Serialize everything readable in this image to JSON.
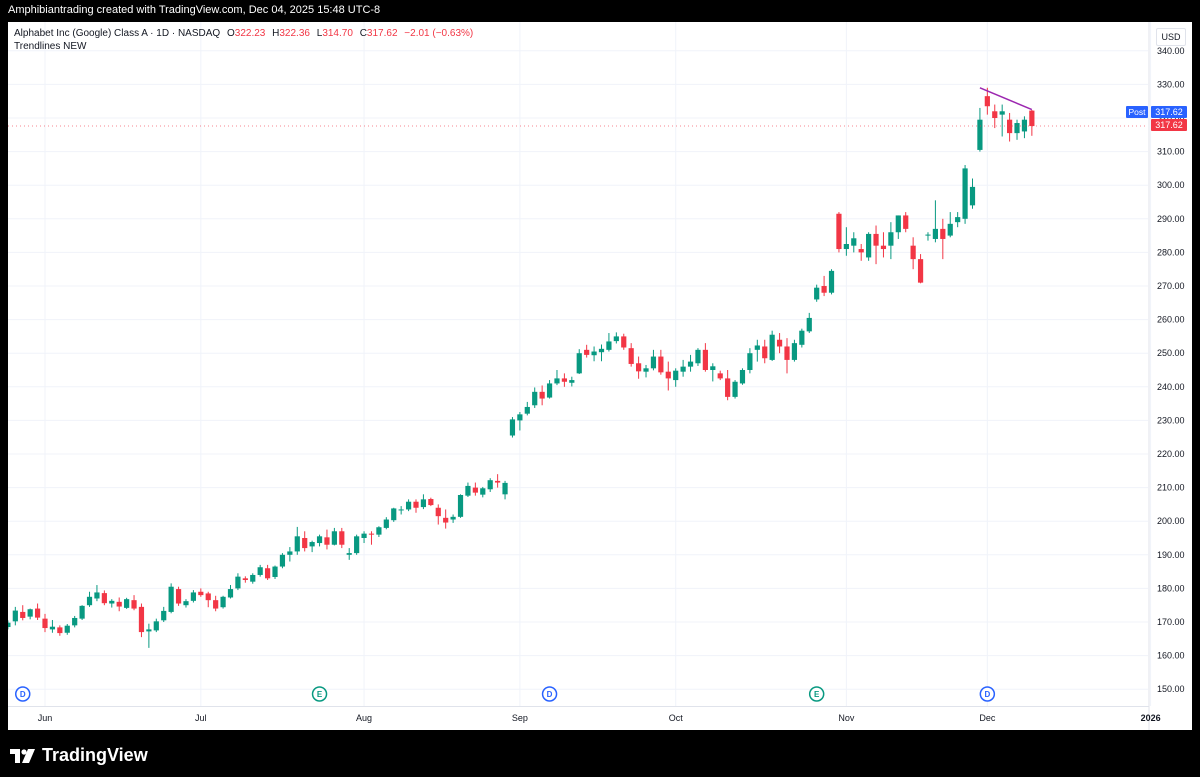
{
  "header": {
    "caption": "Amphibiantrading created with TradingView.com, Dec 04, 2025 15:48 UTC-8"
  },
  "legend": {
    "symbol": "Alphabet Inc (Google) Class A · 1D · NASDAQ",
    "o_label": "O",
    "o": "322.23",
    "h_label": "H",
    "h": "322.36",
    "l_label": "L",
    "l": "314.70",
    "c_label": "C",
    "c": "317.62",
    "change": "−2.01 (−0.63%)",
    "indicator": "Trendlines NEW"
  },
  "currency": "USD",
  "price_tags": {
    "post_label": "Post",
    "post_value": "317.62",
    "last_value": "317.62"
  },
  "footer": {
    "brand": "TradingView"
  },
  "colors": {
    "up": "#089981",
    "down": "#f23645",
    "trendline": "#9c27b0",
    "event_dividend": "#2962ff",
    "event_earnings": "#089981"
  },
  "chart_data": {
    "type": "candlestick",
    "title": "Alphabet Inc (Google) Class A · 1D · NASDAQ",
    "ylabel": "USD",
    "ylim": [
      145,
      345
    ],
    "y_ticks": [
      150,
      160,
      170,
      180,
      190,
      200,
      210,
      220,
      230,
      240,
      250,
      260,
      270,
      280,
      290,
      300,
      310,
      320,
      330,
      340
    ],
    "x_ticks": [
      {
        "label": "Jun",
        "day": 0
      },
      {
        "label": "Jul",
        "day": 21
      },
      {
        "label": "Aug",
        "day": 43
      },
      {
        "label": "Sep",
        "day": 64
      },
      {
        "label": "Oct",
        "day": 85
      },
      {
        "label": "Nov",
        "day": 108
      },
      {
        "label": "Dec",
        "day": 127
      },
      {
        "label": "2026",
        "day": 149
      }
    ],
    "first_bar_day": -5,
    "ohlc": [
      [
        168.5,
        170.5,
        167.8,
        169.8
      ],
      [
        170.2,
        174.5,
        169.0,
        173.4
      ],
      [
        173.0,
        175.0,
        170.5,
        171.2
      ],
      [
        171.6,
        174.0,
        170.8,
        173.8
      ],
      [
        174.0,
        175.5,
        170.6,
        171.3
      ],
      [
        171.0,
        172.4,
        167.0,
        168.2
      ],
      [
        167.8,
        170.6,
        166.8,
        168.6
      ],
      [
        168.4,
        169.0,
        165.9,
        166.7
      ],
      [
        166.8,
        169.4,
        166.2,
        168.9
      ],
      [
        169.0,
        171.8,
        168.4,
        171.2
      ],
      [
        171.0,
        175.0,
        170.6,
        174.8
      ],
      [
        175.0,
        179.0,
        174.5,
        177.5
      ],
      [
        177.0,
        181.0,
        176.2,
        178.8
      ],
      [
        178.6,
        179.4,
        175.0,
        175.6
      ],
      [
        175.5,
        176.8,
        174.3,
        176.3
      ],
      [
        176.0,
        177.3,
        173.2,
        174.6
      ],
      [
        174.2,
        177.2,
        173.9,
        176.8
      ],
      [
        176.5,
        178.0,
        173.5,
        174.0
      ],
      [
        174.5,
        175.5,
        165.5,
        167.0
      ],
      [
        167.2,
        169.5,
        162.3,
        167.8
      ],
      [
        167.5,
        171.0,
        167.0,
        170.2
      ],
      [
        170.5,
        174.5,
        170.0,
        173.3
      ],
      [
        173.0,
        181.5,
        172.6,
        180.5
      ],
      [
        179.8,
        180.5,
        174.8,
        175.5
      ],
      [
        175.0,
        176.8,
        174.3,
        176.2
      ],
      [
        176.3,
        179.5,
        175.8,
        178.8
      ],
      [
        179.0,
        180.0,
        177.5,
        178.0
      ],
      [
        178.5,
        179.0,
        174.4,
        176.5
      ],
      [
        176.5,
        177.8,
        173.2,
        174.0
      ],
      [
        174.4,
        177.8,
        174.0,
        177.5
      ],
      [
        177.3,
        181.0,
        177.0,
        179.8
      ],
      [
        180.0,
        184.5,
        179.5,
        183.5
      ],
      [
        183.0,
        183.6,
        181.7,
        182.5
      ],
      [
        182.0,
        184.5,
        181.4,
        184.0
      ],
      [
        184.0,
        187.0,
        183.5,
        186.3
      ],
      [
        186.0,
        187.0,
        182.5,
        183.0
      ],
      [
        183.4,
        186.8,
        182.8,
        186.5
      ],
      [
        186.5,
        190.5,
        186.0,
        190.0
      ],
      [
        190.0,
        192.3,
        188.0,
        191.0
      ],
      [
        191.0,
        198.3,
        190.0,
        195.5
      ],
      [
        195.0,
        197.0,
        191.0,
        192.0
      ],
      [
        192.5,
        194.2,
        190.8,
        193.8
      ],
      [
        193.5,
        196.0,
        192.5,
        195.5
      ],
      [
        195.2,
        197.5,
        191.6,
        193.0
      ],
      [
        193.0,
        198.0,
        192.8,
        197.0
      ],
      [
        197.0,
        198.0,
        192.0,
        193.0
      ],
      [
        190.0,
        192.0,
        188.5,
        190.5
      ],
      [
        190.5,
        196.0,
        190.0,
        195.5
      ],
      [
        195.0,
        197.0,
        193.5,
        196.3
      ],
      [
        196.3,
        197.0,
        193.0,
        196.0
      ],
      [
        196.0,
        198.5,
        195.3,
        198.2
      ],
      [
        198.0,
        201.2,
        197.6,
        200.5
      ],
      [
        200.3,
        204.0,
        199.8,
        203.8
      ],
      [
        203.2,
        204.5,
        202.0,
        203.5
      ],
      [
        203.5,
        206.5,
        203.0,
        205.8
      ],
      [
        205.8,
        206.5,
        202.5,
        204.0
      ],
      [
        204.2,
        208.0,
        203.6,
        206.5
      ],
      [
        206.6,
        207.0,
        204.5,
        204.8
      ],
      [
        204.0,
        205.0,
        199.0,
        201.5
      ],
      [
        201.0,
        203.5,
        197.8,
        199.6
      ],
      [
        200.5,
        202.0,
        199.5,
        201.3
      ],
      [
        201.3,
        208.0,
        201.0,
        207.8
      ],
      [
        207.6,
        211.5,
        207.2,
        210.5
      ],
      [
        210.0,
        211.5,
        207.6,
        208.5
      ],
      [
        207.9,
        210.2,
        207.1,
        209.8
      ],
      [
        209.5,
        212.8,
        208.7,
        212.2
      ],
      [
        212.0,
        214.0,
        210.0,
        211.5
      ],
      [
        208.0,
        212.0,
        206.5,
        211.4
      ],
      [
        225.5,
        231.0,
        224.9,
        230.3
      ],
      [
        230.0,
        232.5,
        227.0,
        231.8
      ],
      [
        232.0,
        235.5,
        231.5,
        234.0
      ],
      [
        234.5,
        239.8,
        233.7,
        238.5
      ],
      [
        238.5,
        240.4,
        234.5,
        236.5
      ],
      [
        236.8,
        242.0,
        236.5,
        241.0
      ],
      [
        241.0,
        245.0,
        240.5,
        242.5
      ],
      [
        242.5,
        244.0,
        240.0,
        241.5
      ],
      [
        241.2,
        243.0,
        240.1,
        242.0
      ],
      [
        244.0,
        251.2,
        243.8,
        250.0
      ],
      [
        251.0,
        252.5,
        248.7,
        249.5
      ],
      [
        249.4,
        252.0,
        247.6,
        250.5
      ],
      [
        250.3,
        252.6,
        247.6,
        251.3
      ],
      [
        251.0,
        256.0,
        250.5,
        253.5
      ],
      [
        253.6,
        256.2,
        252.9,
        255.0
      ],
      [
        255.0,
        255.8,
        251.0,
        251.7
      ],
      [
        251.5,
        253.0,
        246.0,
        246.8
      ],
      [
        247.0,
        249.0,
        242.4,
        244.6
      ],
      [
        244.5,
        246.5,
        242.8,
        245.5
      ],
      [
        245.5,
        251.0,
        244.9,
        249.0
      ],
      [
        249.0,
        251.0,
        243.6,
        244.3
      ],
      [
        244.5,
        247.5,
        238.9,
        242.5
      ],
      [
        242.0,
        245.5,
        240.0,
        244.8
      ],
      [
        244.5,
        248.0,
        243.0,
        246.0
      ],
      [
        246.0,
        249.5,
        244.5,
        247.5
      ],
      [
        247.0,
        251.5,
        246.2,
        251.0
      ],
      [
        251.0,
        253.0,
        244.5,
        245.0
      ],
      [
        245.0,
        247.0,
        241.6,
        246.1
      ],
      [
        244.0,
        244.8,
        242.0,
        242.5
      ],
      [
        242.5,
        245.0,
        236.0,
        237.0
      ],
      [
        237.0,
        242.0,
        236.5,
        241.5
      ],
      [
        241.0,
        245.5,
        240.6,
        245.0
      ],
      [
        245.0,
        251.5,
        244.0,
        250.0
      ],
      [
        251.0,
        254.0,
        247.5,
        252.3
      ],
      [
        252.0,
        254.0,
        247.0,
        248.5
      ],
      [
        248.0,
        256.7,
        247.7,
        255.5
      ],
      [
        254.0,
        256.0,
        250.0,
        252.0
      ],
      [
        252.0,
        254.5,
        244.0,
        248.0
      ],
      [
        248.0,
        254.0,
        247.5,
        253.0
      ],
      [
        252.5,
        257.3,
        251.7,
        256.7
      ],
      [
        256.5,
        262.0,
        256.0,
        260.5
      ],
      [
        266.0,
        270.4,
        265.3,
        269.5
      ],
      [
        270.0,
        273.0,
        267.0,
        268.0
      ],
      [
        268.0,
        275.0,
        267.5,
        274.5
      ],
      [
        291.5,
        292.0,
        280.0,
        281.0
      ],
      [
        281.0,
        287.5,
        279.0,
        282.5
      ],
      [
        282.0,
        286.0,
        280.0,
        284.2
      ],
      [
        281.0,
        282.5,
        277.5,
        280.0
      ],
      [
        278.5,
        286.0,
        277.5,
        285.5
      ],
      [
        285.5,
        288.0,
        276.5,
        282.0
      ],
      [
        282.0,
        286.0,
        278.5,
        281.0
      ],
      [
        282.0,
        289.0,
        278.0,
        286.0
      ],
      [
        286.0,
        291.0,
        284.0,
        291.0
      ],
      [
        291.0,
        292.0,
        286.0,
        287.0
      ],
      [
        282.0,
        284.5,
        275.0,
        278.0
      ],
      [
        278.0,
        279.5,
        270.8,
        271.0
      ],
      [
        285.0,
        286.0,
        283.5,
        285.3
      ],
      [
        284.0,
        295.5,
        283.0,
        287.0
      ],
      [
        287.0,
        290.0,
        278.0,
        284.0
      ],
      [
        285.0,
        292.0,
        284.5,
        288.5
      ],
      [
        289.0,
        292.0,
        287.5,
        290.5
      ],
      [
        290.0,
        306.0,
        288.5,
        305.0
      ],
      [
        294.0,
        302.0,
        293.0,
        299.5
      ],
      [
        310.5,
        323.0,
        310.0,
        319.5
      ],
      [
        326.5,
        329.0,
        321.0,
        323.5
      ],
      [
        322.0,
        324.0,
        317.0,
        320.0
      ],
      [
        321.0,
        324.0,
        314.5,
        322.0
      ],
      [
        319.5,
        321.5,
        313.0,
        315.5
      ],
      [
        315.5,
        319.5,
        313.5,
        318.5
      ],
      [
        316.0,
        320.5,
        314.0,
        319.5
      ],
      [
        322.2,
        322.4,
        314.7,
        317.6
      ]
    ],
    "trendline": {
      "from": {
        "day": 126,
        "price": 329.0
      },
      "to": {
        "day": 133,
        "price": 322.5
      }
    },
    "events": [
      {
        "type": "D",
        "day": -3
      },
      {
        "type": "E",
        "day": 37
      },
      {
        "type": "D",
        "day": 68
      },
      {
        "type": "E",
        "day": 104
      },
      {
        "type": "D",
        "day": 127
      }
    ],
    "last_price": 317.62,
    "grid": true,
    "legend_position": "top-left"
  }
}
